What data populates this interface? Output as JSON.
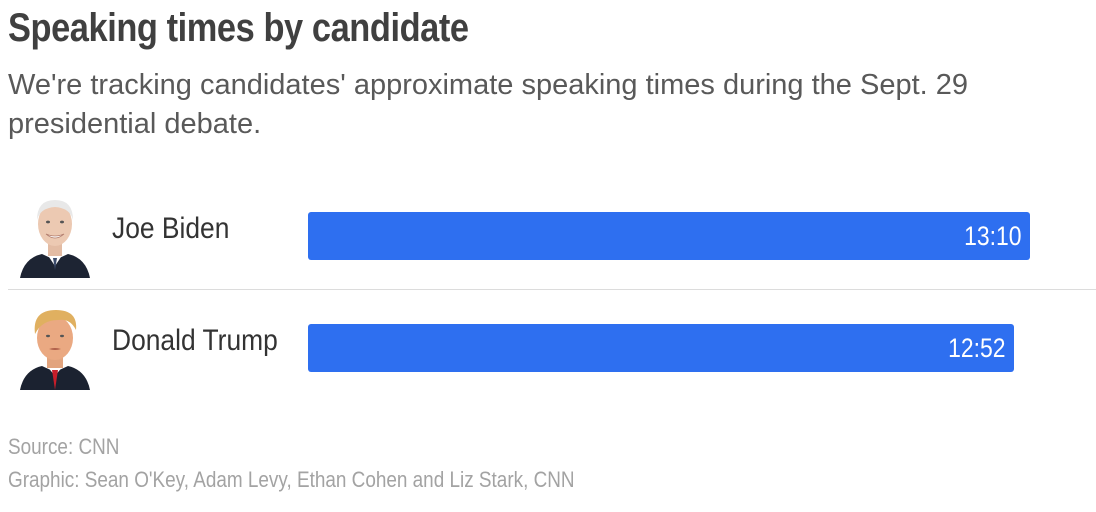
{
  "title": "Speaking times by candidate",
  "subtitle": "We're tracking candidates' approximate speaking times during the Sept. 29 presidential debate.",
  "source": "Source: CNN",
  "credit": "Graphic: Sean O'Key, Adam Levy, Ethan Cohen and Liz Stark, CNN",
  "colors": {
    "bar": "#2e6ff0",
    "divider": "#dcdcdc"
  },
  "chart_data": {
    "type": "bar",
    "orientation": "horizontal",
    "title": "Speaking times by candidate",
    "categories": [
      "Joe Biden",
      "Donald Trump"
    ],
    "values": [
      790,
      772
    ],
    "value_units": "seconds",
    "data_labels": [
      "13:10",
      "12:52"
    ],
    "avatars": [
      "joe-biden-photo",
      "donald-trump-photo"
    ],
    "xlim": [
      0,
      790
    ],
    "grid": false,
    "legend": "none"
  }
}
